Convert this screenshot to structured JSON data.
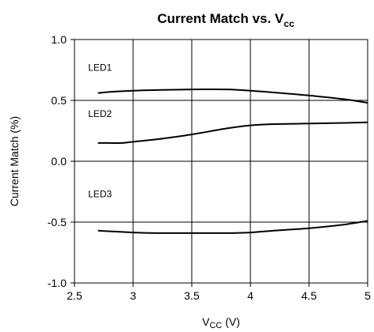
{
  "chart_data": {
    "type": "line",
    "title": "Current Match vs. V",
    "title_subscript": "cc",
    "xlabel": "V",
    "xlabel_subscript": "CC",
    "xlabel_unit": " (V)",
    "ylabel": "Current Match (%)",
    "xlim": [
      2.5,
      5
    ],
    "ylim": [
      -1.0,
      1.0
    ],
    "xticks": [
      2.5,
      3,
      3.5,
      4,
      4.5,
      5
    ],
    "xtick_labels": [
      "2.5",
      "3",
      "3.5",
      "4",
      "4.5",
      "5"
    ],
    "yticks": [
      1.0,
      0.5,
      0.0,
      -0.5,
      -1.0
    ],
    "ytick_labels": [
      "1.0",
      "0.5",
      "0.0",
      "-0.5",
      "-1.0"
    ],
    "grid": true,
    "legend": "none",
    "series": [
      {
        "name": "LED1",
        "x": [
          2.7,
          2.8,
          3.0,
          3.2,
          3.5,
          3.8,
          4.0,
          4.2,
          4.5,
          4.8,
          5.0
        ],
        "y": [
          0.56,
          0.57,
          0.58,
          0.585,
          0.59,
          0.59,
          0.58,
          0.565,
          0.54,
          0.51,
          0.48
        ]
      },
      {
        "name": "LED2",
        "x": [
          2.7,
          2.8,
          2.9,
          3.0,
          3.2,
          3.5,
          3.8,
          4.0,
          4.2,
          4.5,
          4.8,
          5.0
        ],
        "y": [
          0.15,
          0.15,
          0.15,
          0.16,
          0.18,
          0.22,
          0.27,
          0.295,
          0.305,
          0.31,
          0.315,
          0.32
        ]
      },
      {
        "name": "LED3",
        "x": [
          2.7,
          2.8,
          3.0,
          3.2,
          3.5,
          3.8,
          4.0,
          4.2,
          4.5,
          4.8,
          5.0
        ],
        "y": [
          -0.57,
          -0.575,
          -0.585,
          -0.59,
          -0.59,
          -0.59,
          -0.585,
          -0.57,
          -0.55,
          -0.52,
          -0.49
        ]
      }
    ],
    "series_label_positions": [
      {
        "name": "LED1",
        "x": 2.9,
        "y": 0.77
      },
      {
        "name": "LED2",
        "x": 2.9,
        "y": 0.39
      },
      {
        "name": "LED3",
        "x": 2.9,
        "y": -0.27
      }
    ],
    "colors": {
      "line": "#000000",
      "grid": "#000000",
      "background": "#ffffff"
    }
  }
}
